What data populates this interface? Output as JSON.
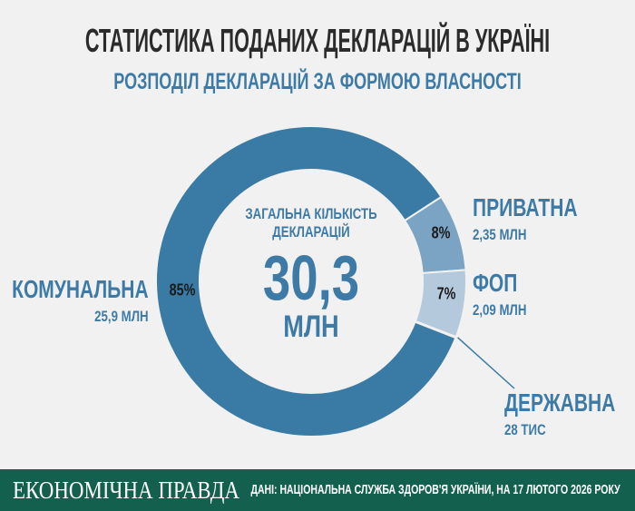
{
  "header": {
    "title": "СТАТИСТИКА ПОДАНИХ ДЕКЛАРАЦІЙ В УКРАЇНІ",
    "subtitle": "РОЗПОДІЛ ДЕКЛАРАЦІЙ ЗА ФОРМОЮ ВЛАСНОСТІ"
  },
  "chart_data": {
    "type": "pie",
    "variant": "donut",
    "title": "РОЗПОДІЛ ДЕКЛАРАЦІЙ ЗА ФОРМОЮ ВЛАСНОСТІ",
    "center": {
      "caption": "ЗАГАЛЬНА КІЛЬКІСТЬ ДЕКЛАРАЦІЙ",
      "value": "30,3",
      "unit": "МЛН"
    },
    "slices": [
      {
        "name": "ПРИВАТНА",
        "amount": "2,35 МЛН",
        "percent": 8,
        "percent_label": "8%",
        "color": "#7ba3c3"
      },
      {
        "name": "ФОП",
        "amount": "2,09 МЛН",
        "percent": 7,
        "percent_label": "7%",
        "color": "#b4c9dc"
      },
      {
        "name": "ДЕРЖАВНА",
        "amount": "28 ТИС",
        "percent": 0.1,
        "percent_label": "",
        "color": "#3a7ba5"
      },
      {
        "name": "КОМУНАЛЬНА",
        "amount": "25,9 МЛН",
        "percent": 85,
        "percent_label": "85%",
        "color": "#3a7ba5"
      }
    ]
  },
  "footer": {
    "logo": "ЕКОНОМІЧНА ПРАВДА",
    "source": "ДАНІ: НАЦІОНАЛЬНА СЛУЖБА ЗДОРОВ'Я УКРАЇНИ, НА 17 ЛЮТОГО 2026 РОКУ"
  }
}
